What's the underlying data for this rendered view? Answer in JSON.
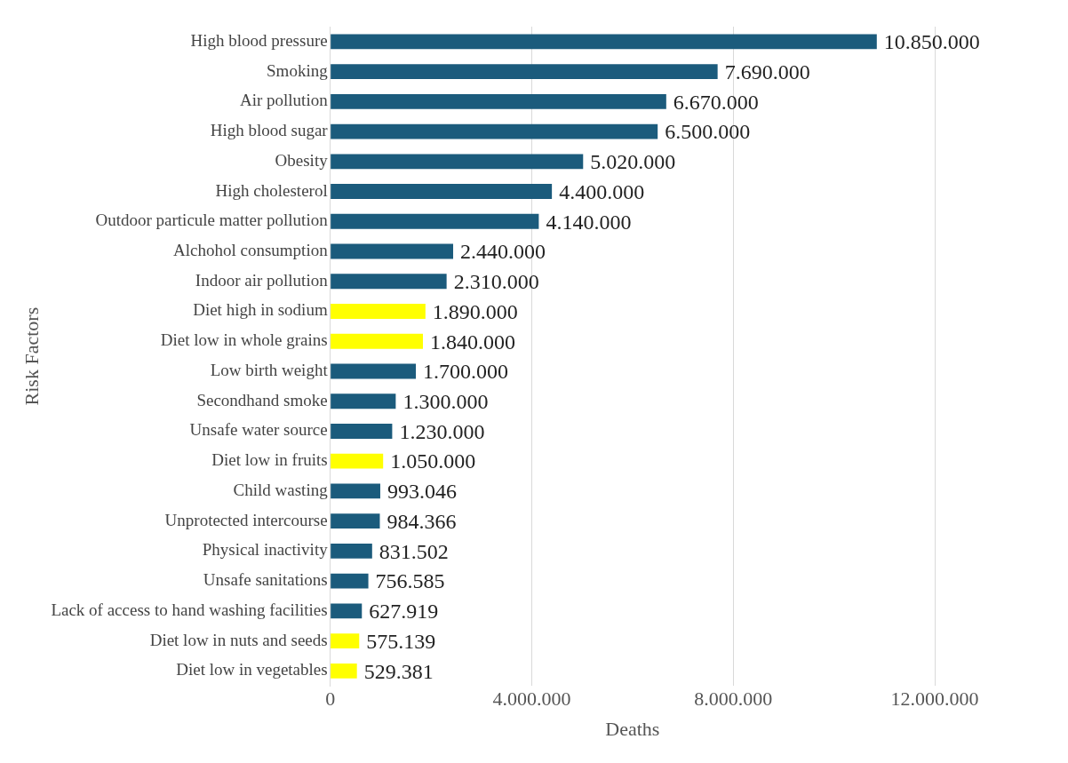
{
  "chart_data": {
    "type": "bar",
    "orientation": "horizontal",
    "xlabel": "Deaths",
    "ylabel": "Risk Factors",
    "categories": [
      "High blood pressure",
      "Smoking",
      "Air pollution",
      "High blood sugar",
      "Obesity",
      "High cholesterol",
      "Outdoor particule matter pollution",
      "Alchohol consumption",
      "Indoor air pollution",
      "Diet high in sodium",
      "Diet low in whole grains",
      "Low birth weight",
      "Secondhand smoke",
      "Unsafe water source",
      "Diet low in fruits",
      "Child wasting",
      "Unprotected intercourse",
      "Physical inactivity",
      "Unsafe sanitations",
      "Lack of access to hand washing facilities",
      "Diet low in nuts and seeds",
      "Diet low in vegetables"
    ],
    "values": [
      10850000,
      7690000,
      6670000,
      6500000,
      5020000,
      4400000,
      4140000,
      2440000,
      2310000,
      1890000,
      1840000,
      1700000,
      1300000,
      1230000,
      1050000,
      993046,
      984366,
      831502,
      756585,
      627919,
      575139,
      529381
    ],
    "value_labels": [
      "10.850.000",
      "7.690.000",
      "6.670.000",
      "6.500.000",
      "5.020.000",
      "4.400.000",
      "4.140.000",
      "2.440.000",
      "2.310.000",
      "1.890.000",
      "1.840.000",
      "1.700.000",
      "1.300.000",
      "1.230.000",
      "1.050.000",
      "993.046",
      "984.366",
      "831.502",
      "756.585",
      "627.919",
      "575.139",
      "529.381"
    ],
    "colors": [
      "#1b5b7c",
      "#1b5b7c",
      "#1b5b7c",
      "#1b5b7c",
      "#1b5b7c",
      "#1b5b7c",
      "#1b5b7c",
      "#1b5b7c",
      "#1b5b7c",
      "#ffff00",
      "#ffff00",
      "#1b5b7c",
      "#1b5b7c",
      "#1b5b7c",
      "#ffff00",
      "#1b5b7c",
      "#1b5b7c",
      "#1b5b7c",
      "#1b5b7c",
      "#1b5b7c",
      "#ffff00",
      "#ffff00"
    ],
    "xlim": [
      0,
      12000000
    ],
    "xticks": [
      0,
      {
        "value": 4000000,
        "label": "4.000.000"
      },
      {
        "value": 8000000,
        "label": "8.000.000"
      },
      {
        "value": 12000000,
        "label": "12.000.000"
      }
    ],
    "grid": "x",
    "legend": false
  }
}
